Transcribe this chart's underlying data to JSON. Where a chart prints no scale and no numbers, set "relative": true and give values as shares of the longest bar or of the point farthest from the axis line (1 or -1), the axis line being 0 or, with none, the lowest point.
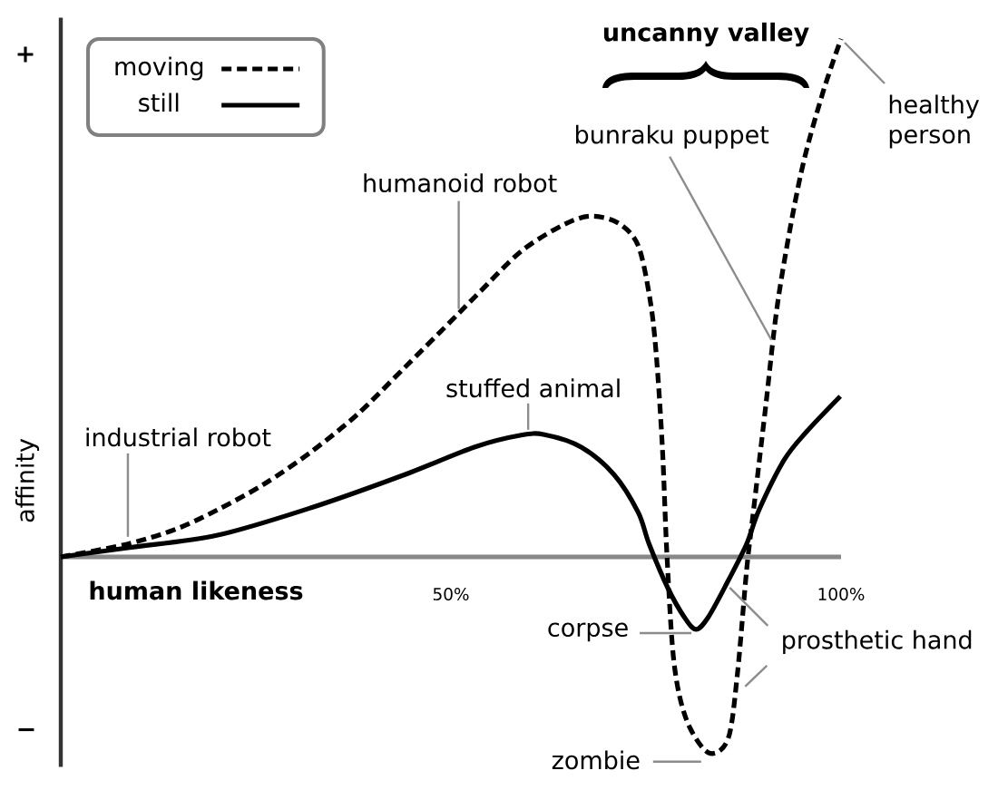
{
  "chart_data": {
    "type": "line",
    "relative": true,
    "xlabel": "human likeness",
    "ylabel": "affinity",
    "xlim": [
      0,
      100
    ],
    "xticks": [
      {
        "value": 50,
        "label": "50%"
      },
      {
        "value": 100,
        "label": "100%"
      }
    ],
    "legend": "top left",
    "series": [
      {
        "name": "moving",
        "color": "#000000",
        "line_style": "dashed",
        "x": [
          0,
          8.6,
          15.0,
          20.1,
          26.0,
          32.1,
          38.0,
          44.1,
          50.0,
          53.6,
          59.0,
          64.4,
          68.0,
          71.5,
          74.0,
          75.5,
          76.3,
          77.1,
          77.7,
          78.6,
          80.2,
          83.0,
          85.5,
          86.7,
          87.9,
          88.7,
          90.3,
          92.0,
          94.8,
          97.6,
          100
        ],
        "values": [
          0,
          0.025,
          0.055,
          0.091,
          0.14,
          0.203,
          0.275,
          0.366,
          0.455,
          0.51,
          0.59,
          0.641,
          0.658,
          0.644,
          0.601,
          0.499,
          0.394,
          0.212,
          0,
          -0.205,
          -0.315,
          -0.378,
          -0.352,
          -0.229,
          -0.025,
          0.079,
          0.285,
          0.503,
          0.736,
          0.893,
          1
        ]
      },
      {
        "name": "still",
        "color": "#000000",
        "line_style": "solid",
        "x": [
          0,
          8.8,
          20.1,
          32.1,
          44.1,
          53.0,
          59.0,
          62.0,
          66.7,
          70.9,
          74.0,
          75.4,
          77.8,
          79.9,
          81.4,
          83.0,
          85.5,
          87.9,
          89.5,
          92.7,
          95.6,
          99.9
        ],
        "values": [
          0,
          0.018,
          0.042,
          0.095,
          0.159,
          0.212,
          0.235,
          0.236,
          0.212,
          0.159,
          0.086,
          0.025,
          -0.06,
          -0.116,
          -0.14,
          -0.116,
          -0.047,
          0.025,
          0.091,
          0.187,
          0.242,
          0.31
        ]
      }
    ],
    "annotations": [
      "uncanny valley",
      "+",
      "−",
      {
        "text": "humanoid robot",
        "x": 51.0,
        "y": 0.47
      },
      {
        "text": "stuffed animal",
        "x": 59.9,
        "y": 0.235
      },
      {
        "text": "industrial robot",
        "x": 8.6,
        "y": 0.023
      },
      {
        "text": "bunraku puppet",
        "x": 91.3,
        "y": 0.412
      },
      {
        "text": "healthy person",
        "x": 100,
        "y": 1
      },
      {
        "text": "corpse",
        "x": 81.4,
        "y": -0.14
      },
      {
        "text": "zombie",
        "x": 83.0,
        "y": -0.378
      },
      {
        "text": "prosthetic hand",
        "x": 85.5,
        "y": -0.047
      }
    ]
  }
}
